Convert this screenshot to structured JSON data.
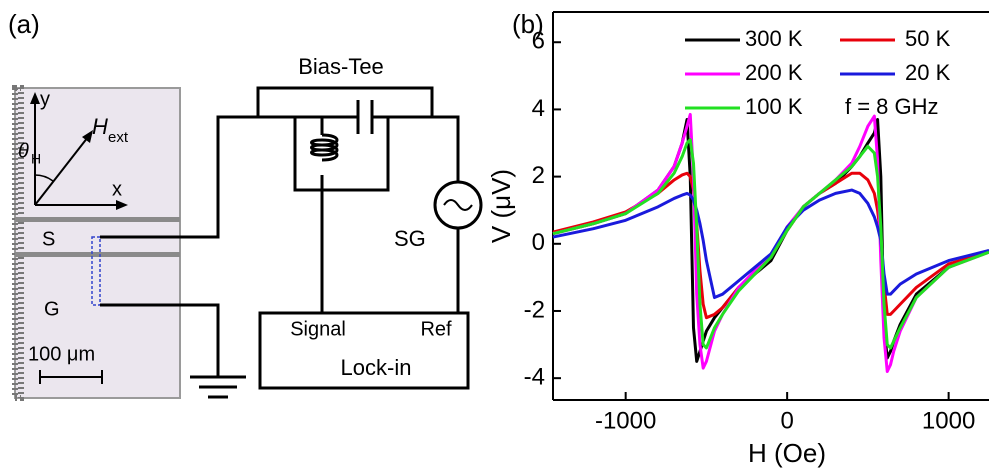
{
  "diagram": {
    "panel_label": "(a)",
    "bias_tee": "Bias-Tee",
    "axis_y": "y",
    "axis_x": "x",
    "field": {
      "symbol": "H",
      "subscript": "ext"
    },
    "angle": {
      "symbol": "θ",
      "subscript": "H"
    },
    "signal_line": "S",
    "ground_line": "G",
    "scale_bar": "100 μm",
    "source": "SG",
    "lockin": {
      "title": "Lock-in",
      "signal": "Signal",
      "ref": "Ref"
    }
  },
  "chart_data": {
    "type": "line",
    "panel_label": "(b)",
    "x_label": "H (Oe)",
    "y_label": "V (μV)",
    "annotation": "f = 8 GHz",
    "x": [
      -1450,
      -1200,
      -1000,
      -800,
      -700,
      -650,
      -620,
      -600,
      -580,
      -560,
      -540,
      -520,
      -500,
      -450,
      -400,
      -300,
      -200,
      -100,
      0,
      100,
      200,
      300,
      400,
      450,
      500,
      540,
      560,
      580,
      600,
      620,
      640,
      660,
      700,
      800,
      1000,
      1250
    ],
    "series": [
      {
        "name": "300 K",
        "color": "#000000",
        "values": [
          0.3,
          0.6,
          0.9,
          1.6,
          2.3,
          3.0,
          3.7,
          2.0,
          -2.5,
          -3.5,
          -3.2,
          -2.9,
          -2.6,
          -2.2,
          -1.9,
          -1.3,
          -0.9,
          -0.5,
          0.4,
          1.1,
          1.5,
          1.8,
          2.3,
          2.6,
          3.0,
          3.3,
          3.7,
          2.0,
          -2.5,
          -3.4,
          -3.2,
          -2.9,
          -2.4,
          -1.5,
          -0.7,
          -0.2
        ]
      },
      {
        "name": "50 K",
        "color": "#e8000b",
        "values": [
          0.35,
          0.65,
          0.95,
          1.5,
          1.9,
          2.05,
          2.1,
          2.0,
          1.6,
          0.6,
          -0.8,
          -1.8,
          -2.2,
          -2.1,
          -1.9,
          -1.3,
          -0.9,
          -0.4,
          0.4,
          1.1,
          1.5,
          1.8,
          2.1,
          2.1,
          1.9,
          1.5,
          1.0,
          0.2,
          -1.2,
          -2.1,
          -2.1,
          -2.0,
          -1.8,
          -1.3,
          -0.6,
          -0.25
        ]
      },
      {
        "name": "200 K",
        "color": "#ff00ff",
        "values": [
          0.3,
          0.6,
          0.9,
          1.6,
          2.3,
          3.0,
          3.5,
          3.85,
          2.0,
          -1.5,
          -3.0,
          -3.7,
          -3.5,
          -2.6,
          -2.1,
          -1.3,
          -0.8,
          -0.4,
          0.5,
          1.1,
          1.5,
          1.9,
          2.4,
          2.9,
          3.5,
          3.8,
          2.5,
          -0.5,
          -2.8,
          -3.8,
          -3.6,
          -3.2,
          -2.6,
          -1.6,
          -0.7,
          -0.25
        ]
      },
      {
        "name": "20 K",
        "color": "#1a1adc",
        "values": [
          0.2,
          0.45,
          0.7,
          1.1,
          1.35,
          1.45,
          1.5,
          1.45,
          1.3,
          1.0,
          0.6,
          0.1,
          -0.5,
          -1.6,
          -1.5,
          -1.1,
          -0.7,
          -0.3,
          0.5,
          1.0,
          1.3,
          1.5,
          1.6,
          1.5,
          1.2,
          0.8,
          0.5,
          0.1,
          -0.9,
          -1.5,
          -1.5,
          -1.4,
          -1.2,
          -0.9,
          -0.5,
          -0.2
        ]
      },
      {
        "name": "100 K",
        "color": "#22e022",
        "values": [
          0.3,
          0.6,
          0.9,
          1.5,
          2.1,
          2.6,
          3.0,
          3.1,
          2.4,
          0.5,
          -1.8,
          -3.0,
          -3.1,
          -2.5,
          -2.1,
          -1.4,
          -0.9,
          -0.4,
          0.4,
          1.1,
          1.5,
          1.9,
          2.3,
          2.6,
          2.9,
          2.7,
          2.0,
          0.5,
          -1.8,
          -3.0,
          -3.1,
          -2.9,
          -2.5,
          -1.6,
          -0.7,
          -0.25
        ]
      }
    ],
    "xlim": [
      -1450,
      1250
    ],
    "xticks": [
      -1000,
      0,
      1000
    ],
    "ylim": [
      -4.65,
      6.9
    ],
    "yticks": [
      -4,
      -2,
      0,
      2,
      4,
      6
    ]
  }
}
